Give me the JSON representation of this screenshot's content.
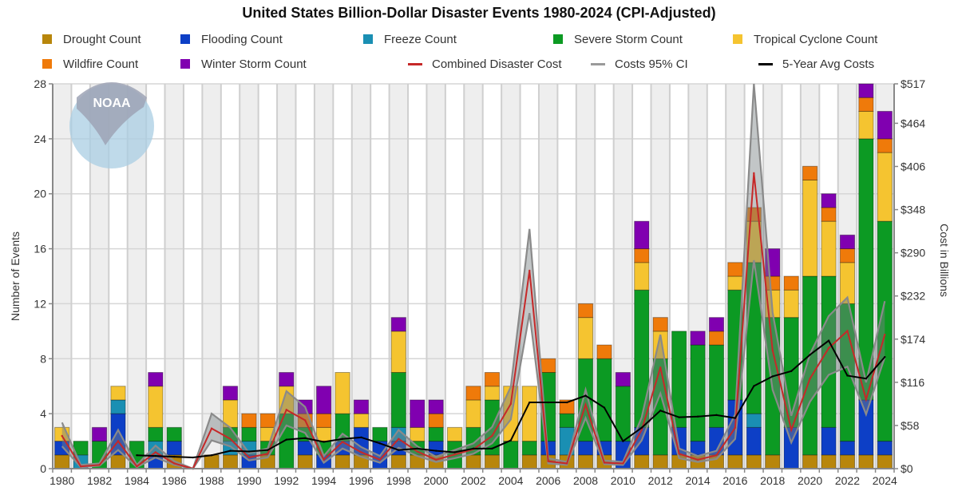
{
  "chart_data": {
    "type": "bar",
    "stacked": true,
    "title": "United States Billion-Dollar Disaster Events 1980-2024 (CPI-Adjusted)",
    "xlabel": "",
    "ylabel": "Number of Events",
    "y2label": "Cost in Billions",
    "ylim": [
      0,
      28
    ],
    "y2lim": [
      0,
      517
    ],
    "yticks": [
      "0",
      "4",
      "8",
      "12",
      "16",
      "20",
      "24",
      "28"
    ],
    "y2ticks": [
      "$0",
      "$58",
      "$116",
      "$174",
      "$232",
      "$290",
      "$348",
      "$406",
      "$464",
      "$517"
    ],
    "xticks": [
      "1980",
      "1982",
      "1984",
      "1986",
      "1988",
      "1990",
      "1992",
      "1994",
      "1996",
      "1998",
      "2000",
      "2002",
      "2004",
      "2006",
      "2008",
      "2010",
      "2012",
      "2014",
      "2016",
      "2018",
      "2020",
      "2022",
      "2024"
    ],
    "grid": true,
    "legend_position": "top",
    "watermark": "NOAA",
    "categories": [
      1980,
      1981,
      1982,
      1983,
      1984,
      1985,
      1986,
      1987,
      1988,
      1989,
      1990,
      1991,
      1992,
      1993,
      1994,
      1995,
      1996,
      1997,
      1998,
      1999,
      2000,
      2001,
      2002,
      2003,
      2004,
      2005,
      2006,
      2007,
      2008,
      2009,
      2010,
      2011,
      2012,
      2013,
      2014,
      2015,
      2016,
      2017,
      2018,
      2019,
      2020,
      2021,
      2022,
      2023,
      2024
    ],
    "series": [
      {
        "name": "Drought Count",
        "color": "#b8860b",
        "kind": "bar",
        "values": [
          1,
          0,
          0,
          1,
          0,
          0,
          1,
          0,
          1,
          1,
          0,
          1,
          0,
          1,
          0,
          1,
          1,
          0,
          1,
          1,
          1,
          0,
          1,
          1,
          0,
          1,
          1,
          1,
          1,
          1,
          0,
          1,
          1,
          1,
          1,
          1,
          1,
          1,
          1,
          0,
          1,
          1,
          1,
          1,
          1
        ]
      },
      {
        "name": "Flooding Count",
        "color": "#0d3fc6",
        "kind": "bar",
        "values": [
          1,
          0,
          0,
          3,
          0,
          1,
          1,
          0,
          0,
          0,
          1,
          0,
          0,
          1,
          1,
          1,
          2,
          2,
          1,
          0,
          1,
          0,
          0,
          0,
          0,
          0,
          1,
          0,
          1,
          1,
          2,
          2,
          0,
          2,
          1,
          2,
          4,
          2,
          0,
          3,
          0,
          2,
          1,
          4,
          1
        ]
      },
      {
        "name": "Freeze Count",
        "color": "#1a8fb3",
        "kind": "bar",
        "values": [
          0,
          1,
          0,
          1,
          0,
          1,
          0,
          0,
          0,
          1,
          1,
          0,
          0,
          0,
          0,
          0,
          0,
          0,
          1,
          0,
          0,
          0,
          0,
          0,
          0,
          0,
          0,
          2,
          0,
          0,
          0,
          0,
          0,
          0,
          0,
          0,
          0,
          1,
          0,
          0,
          0,
          0,
          0,
          0,
          0
        ]
      },
      {
        "name": "Severe Storm Count",
        "color": "#0c9a23",
        "kind": "bar",
        "values": [
          0,
          1,
          2,
          0,
          2,
          1,
          1,
          0,
          0,
          1,
          1,
          1,
          4,
          1,
          1,
          2,
          0,
          1,
          4,
          1,
          1,
          2,
          2,
          4,
          2,
          1,
          5,
          1,
          6,
          6,
          4,
          10,
          7,
          7,
          7,
          6,
          8,
          11,
          10,
          8,
          13,
          11,
          10,
          19,
          16
        ]
      },
      {
        "name": "Tropical Cyclone Count",
        "color": "#f5c430",
        "kind": "bar",
        "values": [
          1,
          0,
          0,
          1,
          0,
          3,
          0,
          0,
          0,
          2,
          0,
          1,
          2,
          0,
          1,
          3,
          1,
          0,
          3,
          1,
          0,
          1,
          2,
          1,
          4,
          4,
          0,
          0,
          3,
          0,
          0,
          2,
          2,
          0,
          0,
          0,
          1,
          3,
          2,
          2,
          7,
          4,
          3,
          2,
          5
        ]
      },
      {
        "name": "Wildfire Count",
        "color": "#ef7a0a",
        "kind": "bar",
        "values": [
          0,
          0,
          0,
          0,
          0,
          0,
          0,
          0,
          0,
          0,
          1,
          1,
          0,
          1,
          1,
          0,
          0,
          0,
          0,
          0,
          1,
          0,
          1,
          1,
          0,
          0,
          1,
          1,
          1,
          1,
          0,
          1,
          1,
          0,
          0,
          1,
          1,
          1,
          1,
          1,
          1,
          1,
          1,
          1,
          1
        ]
      },
      {
        "name": "Winter Storm Count",
        "color": "#8000b0",
        "kind": "bar",
        "values": [
          0,
          0,
          1,
          0,
          0,
          1,
          0,
          0,
          0,
          1,
          0,
          0,
          1,
          1,
          2,
          0,
          1,
          0,
          1,
          2,
          1,
          0,
          0,
          0,
          0,
          0,
          0,
          0,
          0,
          0,
          1,
          2,
          0,
          0,
          1,
          1,
          0,
          0,
          2,
          0,
          0,
          1,
          1,
          1,
          2
        ]
      },
      {
        "name": "Combined Disaster Cost",
        "color": "#c62828",
        "kind": "line",
        "axis": "right",
        "values": [
          44,
          3,
          5,
          37,
          3,
          22,
          7,
          0,
          54,
          40,
          15,
          20,
          79,
          65,
          12,
          36,
          22,
          12,
          40,
          23,
          12,
          19,
          26,
          44,
          87,
          266,
          10,
          7,
          86,
          8,
          7,
          52,
          136,
          20,
          12,
          18,
          55,
          397,
          159,
          52,
          121,
          162,
          185,
          93,
          180
        ]
      },
      {
        "name": "Costs 95% CI",
        "color": "#8a8a8a",
        "kind": "band",
        "axis": "right",
        "lower": [
          30,
          2,
          4,
          25,
          2,
          15,
          5,
          0,
          38,
          30,
          11,
          15,
          58,
          48,
          8,
          27,
          16,
          8,
          28,
          17,
          9,
          14,
          20,
          34,
          66,
          209,
          7,
          5,
          68,
          6,
          5,
          38,
          101,
          14,
          9,
          13,
          40,
          280,
          106,
          35,
          90,
          126,
          137,
          73,
          150
        ],
        "upper": [
          62,
          5,
          7,
          52,
          5,
          31,
          10,
          0,
          74,
          55,
          21,
          27,
          104,
          83,
          17,
          47,
          29,
          17,
          52,
          30,
          16,
          25,
          34,
          56,
          110,
          322,
          14,
          9,
          106,
          11,
          9,
          69,
          180,
          27,
          17,
          24,
          73,
          517,
          210,
          71,
          154,
          205,
          230,
          116,
          225
        ]
      },
      {
        "name": "5-Year Avg Costs",
        "color": "#000000",
        "kind": "line",
        "axis": "right",
        "values": [
          null,
          null,
          null,
          null,
          18,
          17,
          16,
          15,
          18,
          24,
          23,
          25,
          39,
          41,
          36,
          40,
          42,
          34,
          25,
          27,
          24,
          22,
          27,
          27,
          38,
          89,
          89,
          89,
          98,
          82,
          37,
          55,
          78,
          69,
          70,
          72,
          68,
          111,
          124,
          131,
          153,
          172,
          125,
          121,
          150
        ]
      }
    ]
  }
}
